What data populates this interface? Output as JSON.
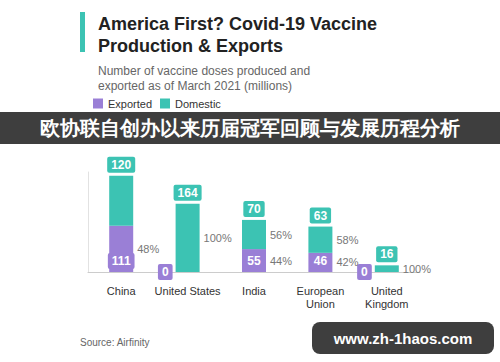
{
  "chart_data": {
    "type": "bar",
    "title": "America First? Covid-19 Vaccine Production & Exports",
    "subtitle": "Number of vaccine doses produced and exported as of March 2021 (millions)",
    "categories": [
      "China",
      "United States",
      "India",
      "European Union",
      "United Kingdom"
    ],
    "series": [
      {
        "name": "Exported",
        "color": "#9a7fd6",
        "values": [
          111,
          0,
          55,
          46,
          0
        ],
        "share_labels": [
          "48%",
          null,
          "44%",
          "42%",
          null
        ]
      },
      {
        "name": "Domestic",
        "color": "#3cc3b3",
        "values": [
          120,
          164,
          70,
          63,
          16
        ],
        "share_labels": [
          null,
          "100%",
          "56%",
          "58%",
          "100%"
        ]
      }
    ],
    "ylim": [
      0,
      240
    ],
    "stacked": true,
    "data_labels": true,
    "tick_labels": "x",
    "grid": false,
    "legend": "top-left",
    "source": "Source: Airfinity",
    "annotations": [
      "欧协联自创办以来历届冠军回顾与发展历程分析",
      "www.zh-1haos.com"
    ]
  }
}
